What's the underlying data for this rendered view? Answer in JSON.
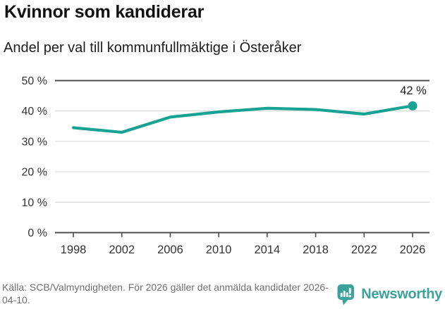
{
  "header": {
    "title": "Kvinnor som kandiderar",
    "subtitle": "Andel per val till kommunfullmäktige i Österåker"
  },
  "chart_data": {
    "type": "line",
    "title": "Kvinnor som kandiderar",
    "subtitle": "Andel per val till kommunfullmäktige i Österåker",
    "x": [
      1998,
      2002,
      2006,
      2010,
      2014,
      2018,
      2022,
      2026
    ],
    "x_labels": [
      "1998",
      "2002",
      "2006",
      "2010",
      "2014",
      "2018",
      "2022",
      "2026"
    ],
    "values": [
      34.5,
      33,
      38,
      39.7,
      40.9,
      40.5,
      39,
      41.7
    ],
    "ylim": [
      0,
      50
    ],
    "yticks": [
      0,
      10,
      20,
      30,
      40,
      50
    ],
    "ytick_labels": [
      "0 %",
      "10 %",
      "20 %",
      "30 %",
      "40 %",
      "50 %"
    ],
    "end_point_label": "42 %",
    "grid": true,
    "legend": "none",
    "marker_last_only": true,
    "line_color": "#18a294"
  },
  "footer": {
    "source": "Källa: SCB/Valmyndigheten. För 2026 gäller det anmälda kandidater 2026-04-10.",
    "brand": "Newsworthy"
  },
  "colors": {
    "accent": "#18a294",
    "logo": "#3ba39c",
    "background": "#ffffff",
    "title_text": "#111111",
    "annotation_text": "#1c1c1c",
    "axis_text": "#333333",
    "grid_light": "#dddddd",
    "grid_strong": "#4d4d4d",
    "source_text": "#6f6f6f"
  }
}
